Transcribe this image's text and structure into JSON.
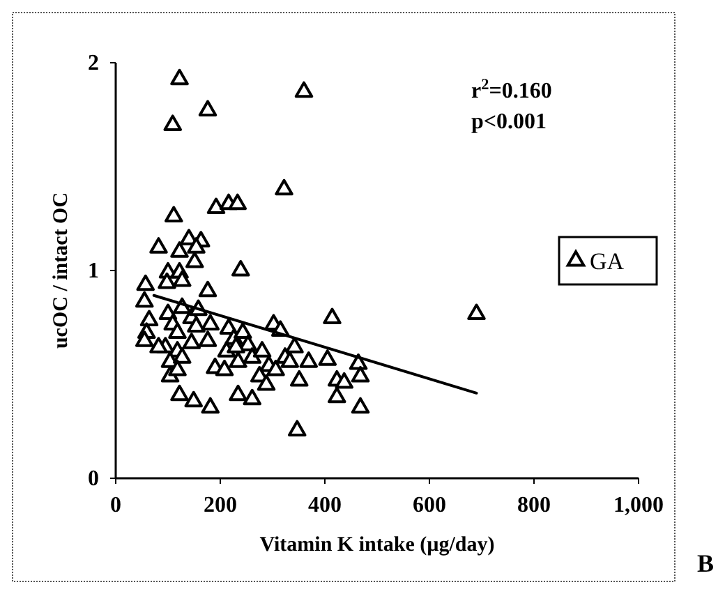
{
  "chart_data": {
    "type": "scatter",
    "xlabel": "Vitamin K intake (µg/day)",
    "ylabel": "ucOC / intact OC",
    "xlim": [
      0,
      1000
    ],
    "xticks": [
      0,
      200,
      400,
      600,
      800,
      {
        "value": 1000,
        "label": "1,000"
      }
    ],
    "ylim": [
      0,
      2
    ],
    "yticks": [
      0,
      1,
      2
    ],
    "grid": false,
    "legend": "right",
    "annotations": [
      "r$^{2}$=0.160",
      "p<0.001",
      "B"
    ],
    "series": [
      {
        "name": "GA",
        "marker": "triangle",
        "color": "#000000",
        "x": [
          122,
          360,
          176,
          109,
          322,
          111,
          192,
          216,
          233,
          82,
          122,
          140,
          163,
          154,
          151,
          239,
          100,
          122,
          98,
          127,
          57,
          55,
          176,
          64,
          59,
          55,
          100,
          109,
          118,
          127,
          145,
          158,
          154,
          95,
          118,
          145,
          176,
          181,
          82,
          104,
          127,
          104,
          118,
          122,
          149,
          181,
          216,
          226,
          243,
          253,
          212,
          234,
          190,
          208,
          230,
          261,
          280,
          293,
          275,
          288,
          306,
          302,
          315,
          342,
          324,
          333,
          351,
          369,
          405,
          414,
          234,
          261,
          347,
          423,
          423,
          437,
          464,
          468,
          468,
          690
        ],
        "values": [
          1.92,
          1.86,
          1.77,
          1.7,
          1.39,
          1.26,
          1.3,
          1.32,
          1.32,
          1.11,
          1.09,
          1.15,
          1.14,
          1.11,
          1.04,
          1.0,
          0.99,
          0.99,
          0.94,
          0.95,
          0.93,
          0.85,
          0.9,
          0.76,
          0.7,
          0.66,
          0.79,
          0.74,
          0.7,
          0.82,
          0.77,
          0.81,
          0.73,
          0.63,
          0.61,
          0.65,
          0.66,
          0.74,
          0.63,
          0.56,
          0.58,
          0.49,
          0.52,
          0.4,
          0.37,
          0.34,
          0.72,
          0.67,
          0.7,
          0.64,
          0.61,
          0.56,
          0.53,
          0.52,
          0.63,
          0.58,
          0.61,
          0.54,
          0.49,
          0.45,
          0.52,
          0.74,
          0.71,
          0.63,
          0.58,
          0.56,
          0.47,
          0.56,
          0.57,
          0.77,
          0.4,
          0.38,
          0.23,
          0.47,
          0.39,
          0.46,
          0.55,
          0.49,
          0.34,
          0.79
        ]
      },
      {
        "type": "line",
        "color": "#000000",
        "x": [
          73,
          690
        ],
        "values": [
          0.88,
          0.41
        ]
      }
    ]
  }
}
